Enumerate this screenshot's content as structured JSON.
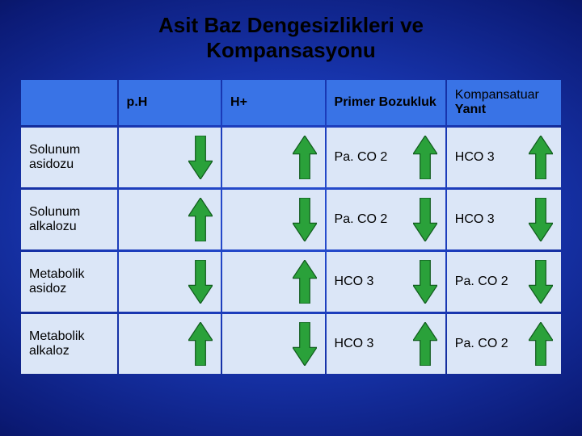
{
  "title_line1": "Asit Baz Dengesizlikleri ve",
  "title_line2": "Kompansasyonu",
  "arrow": {
    "up_fill": "#2aa13a",
    "down_fill": "#2aa13a",
    "stroke": "#0f5a1c",
    "width": 30,
    "height": 54
  },
  "columns": [
    {
      "label": ""
    },
    {
      "label": "p.H"
    },
    {
      "label": "H+"
    },
    {
      "label": "Primer Bozukluk"
    },
    {
      "label_top": "Kompansatuar",
      "label_bottom": "Yanıt"
    }
  ],
  "rows": [
    {
      "name": "Solunum asidozu",
      "cells": [
        {
          "text": "",
          "arrow": "down"
        },
        {
          "text": "",
          "arrow": "up"
        },
        {
          "text": "Pa. CO 2",
          "arrow": "up"
        },
        {
          "text": "HCO 3",
          "arrow": "up"
        }
      ]
    },
    {
      "name": "Solunum alkalozu",
      "cells": [
        {
          "text": "",
          "arrow": "up"
        },
        {
          "text": "",
          "arrow": "down"
        },
        {
          "text": "Pa. CO 2",
          "arrow": "down"
        },
        {
          "text": "HCO 3",
          "arrow": "down"
        }
      ]
    },
    {
      "name": "Metabolik asidoz",
      "cells": [
        {
          "text": "",
          "arrow": "down"
        },
        {
          "text": "",
          "arrow": "up"
        },
        {
          "text": "HCO 3",
          "arrow": "down"
        },
        {
          "text": "Pa. CO 2",
          "arrow": "down"
        }
      ]
    },
    {
      "name": "Metabolik alkaloz",
      "cells": [
        {
          "text": "",
          "arrow": "up"
        },
        {
          "text": "",
          "arrow": "down"
        },
        {
          "text": "HCO 3",
          "arrow": "up"
        },
        {
          "text": "Pa. CO 2",
          "arrow": "up"
        }
      ]
    }
  ]
}
